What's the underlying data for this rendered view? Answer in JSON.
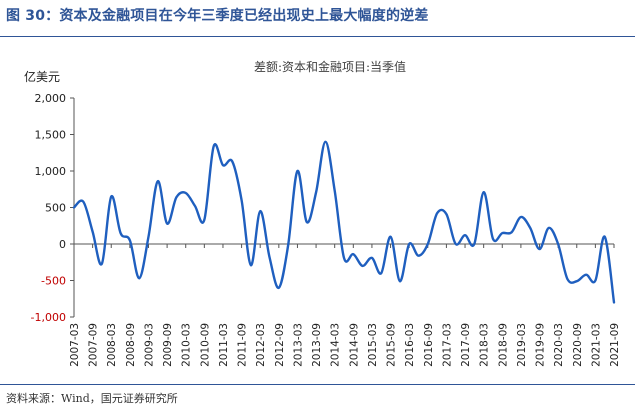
{
  "figure_title": "图 30：资本及金融项目在今年三季度已经出现史上最大幅度的逆差",
  "source_note": "资料来源：Wind，国元证券研究所",
  "chart_data": {
    "type": "line",
    "title": "差额:资本和金融项目:当季值",
    "ylabel": "亿美元",
    "ylim": [
      -1000,
      2000
    ],
    "yticks": [
      -1000,
      -500,
      0,
      500,
      1000,
      1500,
      2000
    ],
    "ytick_labels": [
      "-1,000",
      "-500",
      "0",
      "500",
      "1,000",
      "1,500",
      "2,000"
    ],
    "grid": false,
    "legend": "none",
    "line_color": "#1f5fbf",
    "axis_color": "#555555",
    "negative_tick_color": "#c00000",
    "xtick_labels": [
      "2007-03",
      "2007-09",
      "2008-03",
      "2008-09",
      "2009-03",
      "2009-09",
      "2010-03",
      "2010-09",
      "2011-03",
      "2011-09",
      "2012-03",
      "2012-09",
      "2013-03",
      "2013-09",
      "2014-03",
      "2014-09",
      "2015-03",
      "2015-09",
      "2016-03",
      "2016-09",
      "2017-03",
      "2017-09",
      "2018-03",
      "2018-09",
      "2019-03",
      "2019-09",
      "2020-03",
      "2020-09",
      "2021-03",
      "2021-09"
    ],
    "x": [
      "2007-03",
      "2007-06",
      "2007-09",
      "2007-12",
      "2008-03",
      "2008-06",
      "2008-09",
      "2008-12",
      "2009-03",
      "2009-06",
      "2009-09",
      "2009-12",
      "2010-03",
      "2010-06",
      "2010-09",
      "2010-12",
      "2011-03",
      "2011-06",
      "2011-09",
      "2011-12",
      "2012-03",
      "2012-06",
      "2012-09",
      "2012-12",
      "2013-03",
      "2013-06",
      "2013-09",
      "2013-12",
      "2014-03",
      "2014-06",
      "2014-09",
      "2014-12",
      "2015-03",
      "2015-06",
      "2015-09",
      "2015-12",
      "2016-03",
      "2016-06",
      "2016-09",
      "2016-12",
      "2017-03",
      "2017-06",
      "2017-09",
      "2017-12",
      "2018-03",
      "2018-06",
      "2018-09",
      "2018-12",
      "2019-03",
      "2019-06",
      "2019-09",
      "2019-12",
      "2020-03",
      "2020-06",
      "2020-09",
      "2020-12",
      "2021-03",
      "2021-06",
      "2021-09"
    ],
    "values": [
      500,
      580,
      170,
      -270,
      650,
      150,
      50,
      -470,
      100,
      860,
      280,
      640,
      700,
      520,
      330,
      1340,
      1080,
      1130,
      600,
      -290,
      450,
      -180,
      -600,
      -20,
      1000,
      300,
      710,
      1400,
      730,
      -190,
      -140,
      -300,
      -190,
      -400,
      100,
      -510,
      0,
      -160,
      0,
      420,
      410,
      0,
      120,
      0,
      710,
      70,
      150,
      160,
      370,
      220,
      -70,
      220,
      0,
      -480,
      -510,
      -420,
      -500,
      100,
      -800
    ]
  }
}
